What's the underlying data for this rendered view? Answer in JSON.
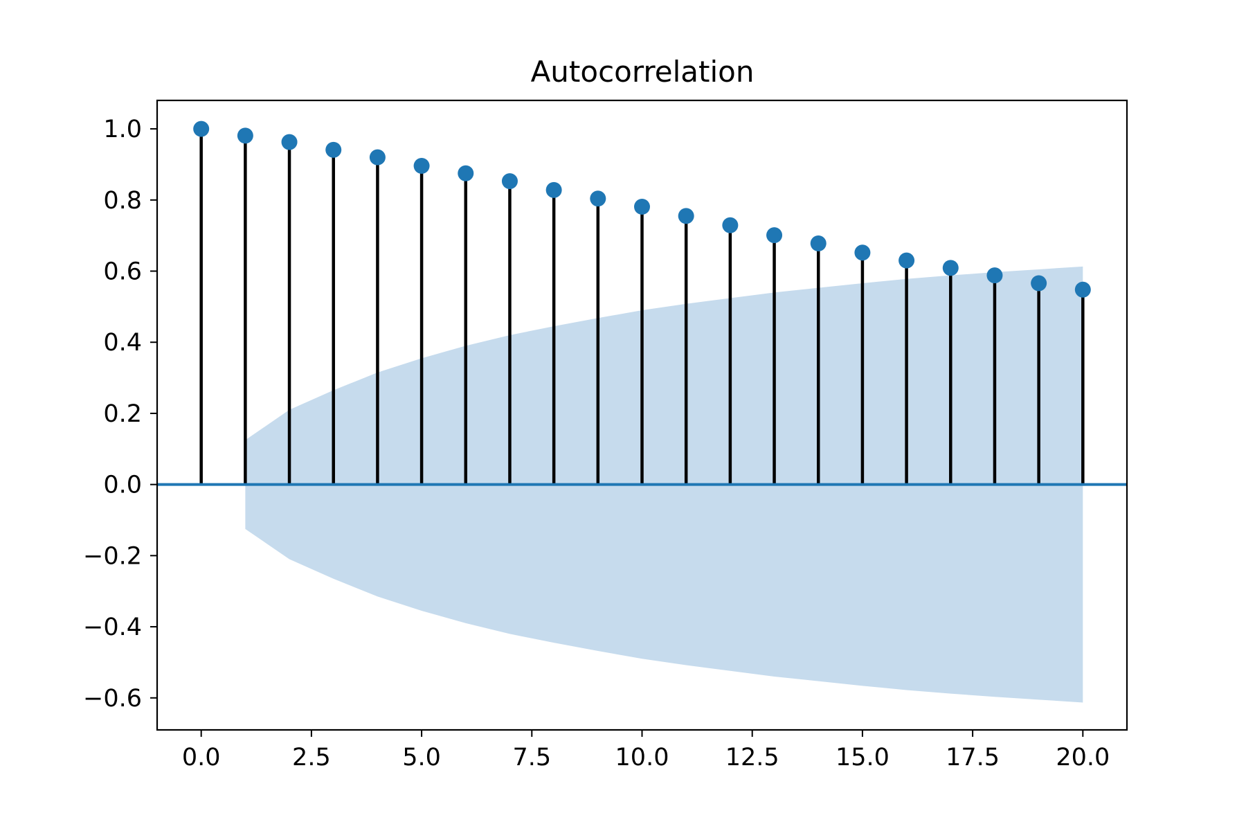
{
  "chart_data": {
    "type": "stem",
    "title": "Autocorrelation",
    "xlabel": "",
    "ylabel": "",
    "xlim": [
      -1,
      21
    ],
    "ylim": [
      -0.69,
      1.08
    ],
    "grid": false,
    "legend": null,
    "x_ticks": [
      0,
      2.5,
      5,
      7.5,
      10,
      12.5,
      15,
      17.5,
      20
    ],
    "x_tick_labels": [
      "0.0",
      "2.5",
      "5.0",
      "7.5",
      "10.0",
      "12.5",
      "15.0",
      "17.5",
      "20.0"
    ],
    "y_ticks": [
      -0.6,
      -0.4,
      -0.2,
      0.0,
      0.2,
      0.4,
      0.6,
      0.8,
      1.0
    ],
    "y_tick_labels": [
      "−0.6",
      "−0.4",
      "−0.2",
      "0.0",
      "0.2",
      "0.4",
      "0.6",
      "0.8",
      "1.0"
    ],
    "lags": [
      0,
      1,
      2,
      3,
      4,
      5,
      6,
      7,
      8,
      9,
      10,
      11,
      12,
      13,
      14,
      15,
      16,
      17,
      18,
      19,
      20
    ],
    "acf": [
      1.0,
      0.981,
      0.963,
      0.941,
      0.92,
      0.896,
      0.875,
      0.853,
      0.828,
      0.804,
      0.781,
      0.755,
      0.729,
      0.701,
      0.678,
      0.652,
      0.63,
      0.609,
      0.588,
      0.566,
      0.548
    ],
    "confint_lags": [
      1,
      2,
      3,
      4,
      5,
      6,
      7,
      8,
      9,
      10,
      11,
      12,
      13,
      14,
      15,
      16,
      17,
      18,
      19,
      20
    ],
    "confint_upper": [
      0.125,
      0.21,
      0.265,
      0.315,
      0.355,
      0.39,
      0.42,
      0.445,
      0.468,
      0.49,
      0.508,
      0.524,
      0.54,
      0.553,
      0.566,
      0.578,
      0.588,
      0.597,
      0.605,
      0.613
    ],
    "confint_lower": [
      -0.125,
      -0.21,
      -0.265,
      -0.315,
      -0.355,
      -0.39,
      -0.42,
      -0.445,
      -0.468,
      -0.49,
      -0.508,
      -0.524,
      -0.54,
      -0.553,
      -0.566,
      -0.578,
      -0.588,
      -0.597,
      -0.605,
      -0.613
    ],
    "colors": {
      "marker": "#1f77b4",
      "stem": "#000000",
      "zero_line": "#1f77b4",
      "confidence_band": "#c6dbed"
    }
  }
}
